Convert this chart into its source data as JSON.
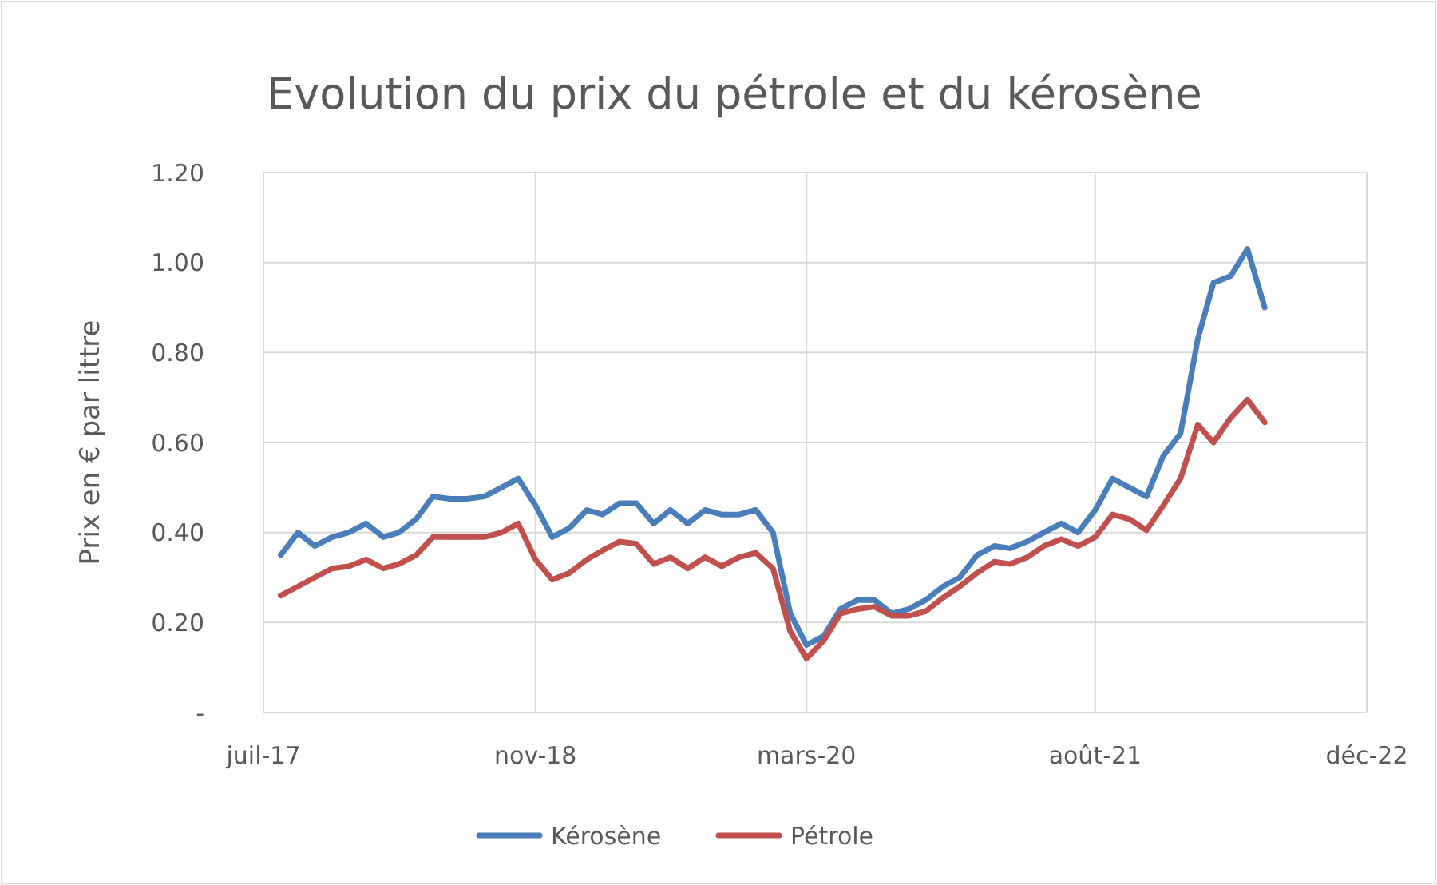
{
  "chart_data": {
    "type": "line",
    "title": "Evolution du prix du pétrole et du kérosène",
    "ylabel": "Prix en € par littre",
    "x": [
      "2017-08",
      "2017-09",
      "2017-10",
      "2017-11",
      "2017-12",
      "2018-01",
      "2018-02",
      "2018-03",
      "2018-04",
      "2018-05",
      "2018-06",
      "2018-07",
      "2018-08",
      "2018-09",
      "2018-10",
      "2018-11",
      "2018-12",
      "2019-01",
      "2019-02",
      "2019-03",
      "2019-04",
      "2019-05",
      "2019-06",
      "2019-07",
      "2019-08",
      "2019-09",
      "2019-10",
      "2019-11",
      "2019-12",
      "2020-01",
      "2020-02",
      "2020-03",
      "2020-04",
      "2020-05",
      "2020-06",
      "2020-07",
      "2020-08",
      "2020-09",
      "2020-10",
      "2020-11",
      "2020-12",
      "2021-01",
      "2021-02",
      "2021-03",
      "2021-04",
      "2021-05",
      "2021-06",
      "2021-07",
      "2021-08",
      "2021-09",
      "2021-10",
      "2021-11",
      "2021-12",
      "2022-01",
      "2022-02",
      "2022-03",
      "2022-04",
      "2022-05",
      "2022-06"
    ],
    "series": [
      {
        "name": "Kérosène",
        "color": "#4a7ebb",
        "values": [
          0.35,
          0.4,
          0.37,
          0.39,
          0.4,
          0.42,
          0.39,
          0.4,
          0.43,
          0.48,
          0.475,
          0.475,
          0.48,
          0.5,
          0.52,
          0.46,
          0.39,
          0.41,
          0.45,
          0.44,
          0.465,
          0.465,
          0.42,
          0.45,
          0.42,
          0.45,
          0.44,
          0.44,
          0.45,
          0.4,
          0.22,
          0.15,
          0.17,
          0.23,
          0.25,
          0.25,
          0.22,
          0.23,
          0.25,
          0.28,
          0.3,
          0.35,
          0.37,
          0.365,
          0.38,
          0.4,
          0.42,
          0.4,
          0.45,
          0.52,
          0.5,
          0.48,
          0.57,
          0.62,
          0.83,
          0.955,
          0.97,
          1.03,
          0.9
        ]
      },
      {
        "name": "Pétrole",
        "color": "#c0504d",
        "values": [
          0.26,
          0.28,
          0.3,
          0.32,
          0.325,
          0.34,
          0.32,
          0.33,
          0.35,
          0.39,
          0.39,
          0.39,
          0.39,
          0.4,
          0.42,
          0.34,
          0.295,
          0.31,
          0.34,
          0.36,
          0.38,
          0.375,
          0.33,
          0.345,
          0.32,
          0.345,
          0.325,
          0.345,
          0.355,
          0.32,
          0.18,
          0.12,
          0.16,
          0.22,
          0.23,
          0.235,
          0.215,
          0.215,
          0.225,
          0.255,
          0.28,
          0.31,
          0.335,
          0.33,
          0.345,
          0.37,
          0.385,
          0.37,
          0.39,
          0.44,
          0.43,
          0.405,
          0.46,
          0.52,
          0.64,
          0.6,
          0.655,
          0.695,
          0.645
        ]
      }
    ],
    "xlim": [
      "2017-07",
      "2022-12"
    ],
    "xticks": [
      {
        "value": "2017-07",
        "label": "juil-17"
      },
      {
        "value": "2018-11",
        "label": "nov-18"
      },
      {
        "value": "2020-03",
        "label": "mars-20"
      },
      {
        "value": "2021-08",
        "label": "août-21"
      },
      {
        "value": "2022-12",
        "label": "déc-22"
      }
    ],
    "ylim": [
      0,
      1.2
    ],
    "yticks": [
      {
        "value": 0,
        "label": "-"
      },
      {
        "value": 0.2,
        "label": "0.20"
      },
      {
        "value": 0.4,
        "label": "0.40"
      },
      {
        "value": 0.6,
        "label": "0.60"
      },
      {
        "value": 0.8,
        "label": "0.80"
      },
      {
        "value": 1.0,
        "label": "1.00"
      },
      {
        "value": 1.2,
        "label": "1.20"
      }
    ],
    "grid": true,
    "legend": "bottom",
    "marker": "none",
    "line_style": "solid"
  }
}
